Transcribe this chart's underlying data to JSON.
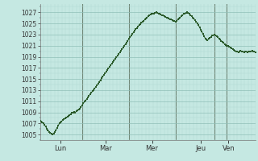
{
  "background_color": "#c5e8e2",
  "plot_bg_color": "#c5e8e2",
  "line_color": "#1a4a1a",
  "marker_color": "#2a5a2a",
  "grid_color_minor": "#b0d8d0",
  "grid_color_major": "#90c0b8",
  "vline_color": "#708878",
  "tick_label_color": "#333333",
  "axis_label_color": "#333333",
  "ylim": [
    1004.0,
    1028.5
  ],
  "yticks": [
    1005,
    1007,
    1009,
    1011,
    1013,
    1015,
    1017,
    1019,
    1021,
    1023,
    1025,
    1027
  ],
  "day_labels": [
    "Lun",
    "Mar",
    "Mer",
    "Jeu",
    "Ven"
  ],
  "pressure_data": [
    1007.5,
    1007.4,
    1007.2,
    1007.0,
    1006.7,
    1006.4,
    1006.1,
    1005.8,
    1005.5,
    1005.3,
    1005.1,
    1005.0,
    1005.2,
    1005.5,
    1005.8,
    1006.2,
    1006.6,
    1007.0,
    1007.2,
    1007.4,
    1007.6,
    1007.8,
    1007.9,
    1008.0,
    1008.2,
    1008.3,
    1008.5,
    1008.7,
    1008.9,
    1009.0,
    1009.1,
    1009.0,
    1009.2,
    1009.3,
    1009.5,
    1009.7,
    1010.0,
    1010.3,
    1010.6,
    1010.9,
    1011.1,
    1011.4,
    1011.7,
    1012.0,
    1012.3,
    1012.5,
    1012.8,
    1013.0,
    1013.3,
    1013.6,
    1013.9,
    1014.2,
    1014.5,
    1014.8,
    1015.1,
    1015.4,
    1015.7,
    1016.0,
    1016.3,
    1016.6,
    1016.9,
    1017.2,
    1017.5,
    1017.8,
    1018.0,
    1018.3,
    1018.6,
    1018.9,
    1019.2,
    1019.5,
    1019.8,
    1020.1,
    1020.4,
    1020.7,
    1021.0,
    1021.3,
    1021.6,
    1021.9,
    1022.2,
    1022.5,
    1022.8,
    1023.1,
    1023.4,
    1023.7,
    1024.0,
    1024.2,
    1024.5,
    1024.7,
    1024.9,
    1025.1,
    1025.3,
    1025.5,
    1025.7,
    1025.9,
    1026.1,
    1026.3,
    1026.5,
    1026.6,
    1026.7,
    1026.8,
    1026.8,
    1026.9,
    1027.0,
    1026.9,
    1026.8,
    1026.7,
    1026.6,
    1026.5,
    1026.4,
    1026.3,
    1026.2,
    1026.1,
    1026.0,
    1025.9,
    1025.8,
    1025.7,
    1025.6,
    1025.5,
    1025.4,
    1025.3,
    1025.5,
    1025.7,
    1025.9,
    1026.1,
    1026.3,
    1026.5,
    1026.7,
    1026.8,
    1026.9,
    1027.0,
    1026.9,
    1026.7,
    1026.5,
    1026.3,
    1026.1,
    1025.9,
    1025.6,
    1025.3,
    1025.0,
    1024.7,
    1024.3,
    1023.9,
    1023.5,
    1023.1,
    1022.7,
    1022.3,
    1022.1,
    1022.0,
    1022.2,
    1022.4,
    1022.6,
    1022.8,
    1022.9,
    1023.0,
    1022.9,
    1022.7,
    1022.5,
    1022.3,
    1022.1,
    1021.9,
    1021.7,
    1021.5,
    1021.3,
    1021.1,
    1021.0,
    1020.9,
    1020.8,
    1020.7,
    1020.5,
    1020.4,
    1020.2,
    1020.1,
    1020.0,
    1019.9,
    1019.8,
    1020.0,
    1020.1,
    1020.0,
    1019.9,
    1019.8,
    1020.0,
    1019.9,
    1019.8,
    1019.9,
    1020.0,
    1020.0,
    1020.1,
    1020.0,
    1019.9,
    1019.8
  ]
}
